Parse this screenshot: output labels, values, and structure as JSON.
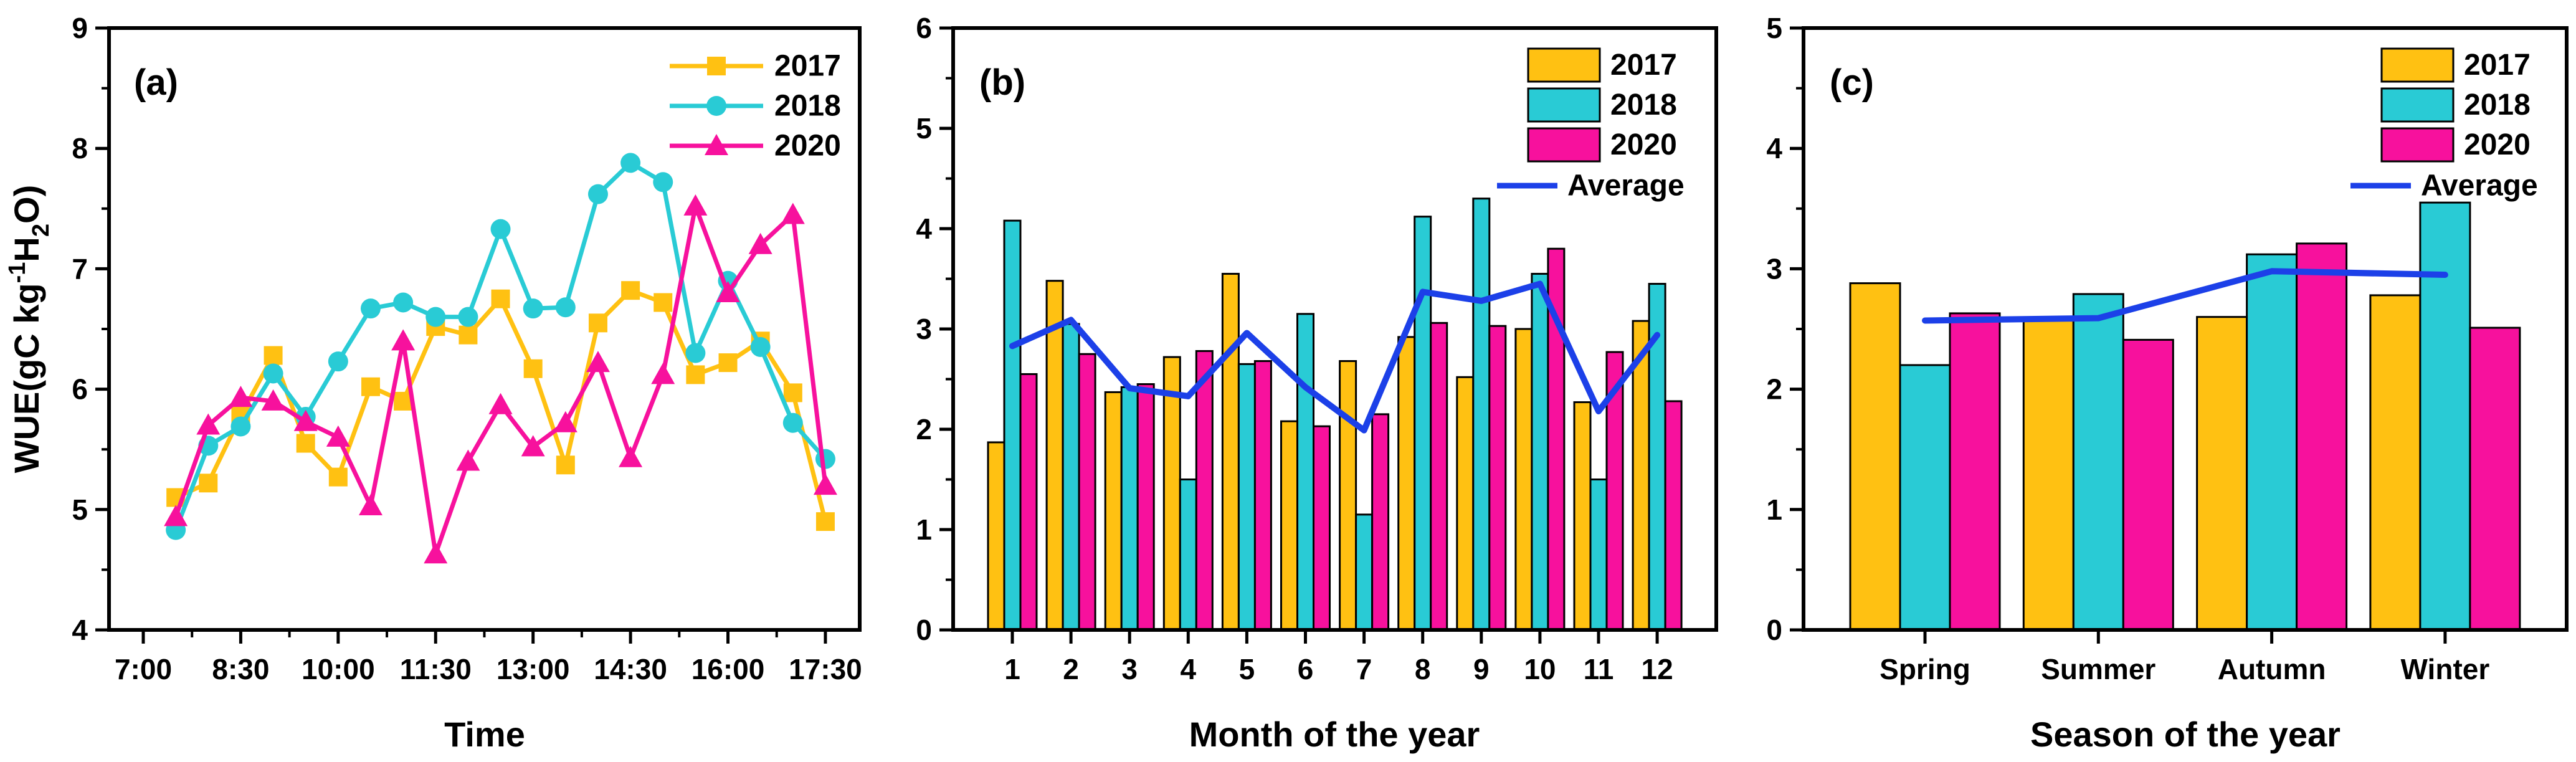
{
  "colors": {
    "axis": "#000000",
    "background": "#FFFFFF",
    "y2017": "#FFC112",
    "y2018": "#29CBD5",
    "y2020": "#F7119D",
    "average": "#1C40E8"
  },
  "chart_data": [
    {
      "id": "a",
      "type": "line",
      "panel_label": "(a)",
      "xlabel": "Time",
      "ylabel_parts": [
        {
          "text": "WUE(gC kg",
          "dy": 0,
          "size": 56
        },
        {
          "text": "-1",
          "dy": -22,
          "size": 38
        },
        {
          "text": "H",
          "dy": 22,
          "size": 56
        },
        {
          "text": "2",
          "dy": 16,
          "size": 38
        },
        {
          "text": "O)",
          "dy": -16,
          "size": 56
        }
      ],
      "ylim": [
        4,
        9
      ],
      "yticks": [
        4,
        5,
        6,
        7,
        8,
        9
      ],
      "y_minor": [
        4.5,
        5.5,
        6.5,
        7.5,
        8.5
      ],
      "xticks": [
        {
          "pos": 7.0,
          "label": "7:00"
        },
        {
          "pos": 8.5,
          "label": "8:30"
        },
        {
          "pos": 10.0,
          "label": "10:00"
        },
        {
          "pos": 11.5,
          "label": "11:30"
        },
        {
          "pos": 13.0,
          "label": "13:00"
        },
        {
          "pos": 14.5,
          "label": "14:30"
        },
        {
          "pos": 16.0,
          "label": "16:00"
        },
        {
          "pos": 17.5,
          "label": "17:30"
        }
      ],
      "x_minor": [
        7.75,
        9.25,
        10.75,
        12.25,
        13.75,
        15.25,
        16.75
      ],
      "x_hours": [
        7.5,
        8.0,
        8.5,
        9.0,
        9.5,
        10.0,
        10.5,
        11.0,
        11.5,
        12.0,
        12.5,
        13.0,
        13.5,
        14.0,
        14.5,
        15.0,
        15.5,
        16.0,
        16.5,
        17.0,
        17.5
      ],
      "series": [
        {
          "name": "2017",
          "color": "#FFC112",
          "marker": "square",
          "values": [
            5.1,
            5.22,
            5.78,
            6.28,
            5.55,
            5.27,
            6.02,
            5.9,
            6.52,
            6.45,
            6.75,
            6.17,
            5.37,
            6.55,
            6.82,
            6.72,
            6.12,
            6.22,
            6.4,
            5.97,
            4.9
          ]
        },
        {
          "name": "2018",
          "color": "#29CBD5",
          "marker": "circle",
          "values": [
            4.83,
            5.53,
            5.69,
            6.13,
            5.77,
            6.23,
            6.67,
            6.72,
            6.6,
            6.6,
            7.33,
            6.67,
            6.68,
            7.62,
            7.88,
            7.72,
            6.3,
            6.9,
            6.35,
            5.72,
            5.42
          ]
        },
        {
          "name": "2020",
          "color": "#F7119D",
          "marker": "triangle",
          "values": [
            4.94,
            5.7,
            5.93,
            5.9,
            5.73,
            5.6,
            5.03,
            6.4,
            4.63,
            5.4,
            5.87,
            5.52,
            5.72,
            6.22,
            5.43,
            6.12,
            7.52,
            6.8,
            7.2,
            7.45,
            5.2
          ]
        }
      ],
      "legend_style": "line-marker"
    },
    {
      "id": "b",
      "type": "bar",
      "panel_label": "(b)",
      "xlabel": "Month of the year",
      "ylim": [
        0,
        6
      ],
      "yticks": [
        0,
        1,
        2,
        3,
        4,
        5,
        6
      ],
      "y_minor": [
        0.5,
        1.5,
        2.5,
        3.5,
        4.5,
        5.5
      ],
      "categories": [
        "1",
        "2",
        "3",
        "4",
        "5",
        "6",
        "7",
        "8",
        "9",
        "10",
        "11",
        "12"
      ],
      "series": [
        {
          "name": "2017",
          "color": "#FFC112",
          "values": [
            1.87,
            3.48,
            2.37,
            2.72,
            3.55,
            2.08,
            2.68,
            2.92,
            2.52,
            3.0,
            2.27,
            3.08
          ]
        },
        {
          "name": "2018",
          "color": "#29CBD5",
          "values": [
            4.08,
            3.05,
            2.42,
            1.5,
            2.65,
            3.15,
            1.15,
            4.12,
            4.3,
            3.55,
            1.5,
            3.45
          ]
        },
        {
          "name": "2020",
          "color": "#F7119D",
          "values": [
            2.55,
            2.75,
            2.45,
            2.78,
            2.68,
            2.03,
            2.15,
            3.06,
            3.03,
            3.8,
            2.77,
            2.28
          ]
        }
      ],
      "average": {
        "name": "Average",
        "color": "#1C40E8",
        "values": [
          2.83,
          3.09,
          2.41,
          2.33,
          2.96,
          2.42,
          1.99,
          3.37,
          3.28,
          3.45,
          2.18,
          2.94
        ]
      },
      "legend_style": "swatch"
    },
    {
      "id": "c",
      "type": "bar",
      "panel_label": "(c)",
      "xlabel": "Season of the year",
      "ylim": [
        0,
        5
      ],
      "yticks": [
        0,
        1,
        2,
        3,
        4,
        5
      ],
      "y_minor": [
        0.5,
        1.5,
        2.5,
        3.5,
        4.5
      ],
      "categories": [
        "Spring",
        "Summer",
        "Autumn",
        "Winter"
      ],
      "series": [
        {
          "name": "2017",
          "color": "#FFC112",
          "values": [
            2.88,
            2.57,
            2.6,
            2.78
          ]
        },
        {
          "name": "2018",
          "color": "#29CBD5",
          "values": [
            2.2,
            2.79,
            3.12,
            3.55
          ]
        },
        {
          "name": "2020",
          "color": "#F7119D",
          "values": [
            2.63,
            2.41,
            3.21,
            2.51
          ]
        }
      ],
      "average": {
        "name": "Average",
        "color": "#1C40E8",
        "values": [
          2.57,
          2.59,
          2.98,
          2.95
        ]
      },
      "legend_style": "swatch"
    }
  ]
}
